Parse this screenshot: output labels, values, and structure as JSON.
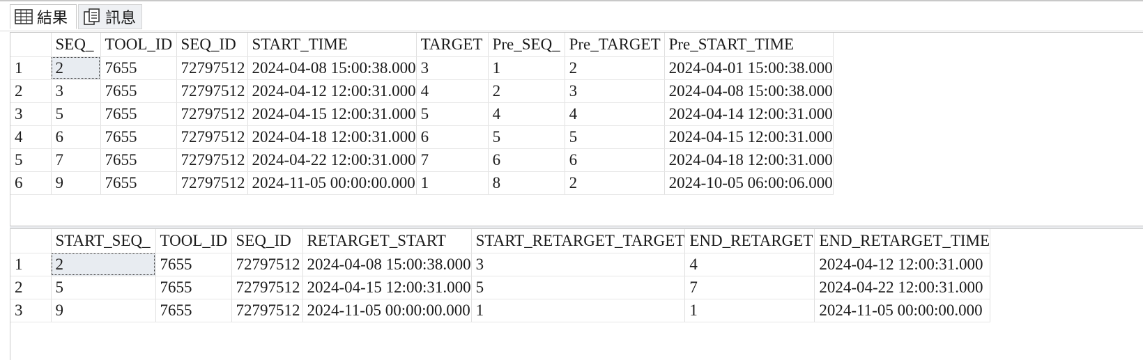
{
  "tabs": [
    {
      "label": "結果",
      "icon": "grid-icon",
      "active": true
    },
    {
      "label": "訊息",
      "icon": "message-icon",
      "active": false
    }
  ],
  "grid1": {
    "columns": [
      "",
      "SEQ_",
      "TOOL_ID",
      "SEQ_ID",
      "START_TIME",
      "TARGET",
      "Pre_SEQ_",
      "Pre_TARGET",
      "Pre_START_TIME"
    ],
    "rows": [
      [
        "1",
        "2",
        "7655",
        "72797512",
        "2024-04-08 15:00:38.000",
        "3",
        "1",
        "2",
        "2024-04-01 15:00:38.000"
      ],
      [
        "2",
        "3",
        "7655",
        "72797512",
        "2024-04-12 12:00:31.000",
        "4",
        "2",
        "3",
        "2024-04-08 15:00:38.000"
      ],
      [
        "3",
        "5",
        "7655",
        "72797512",
        "2024-04-15 12:00:31.000",
        "5",
        "4",
        "4",
        "2024-04-14 12:00:31.000"
      ],
      [
        "4",
        "6",
        "7655",
        "72797512",
        "2024-04-18 12:00:31.000",
        "6",
        "5",
        "5",
        "2024-04-15 12:00:31.000"
      ],
      [
        "5",
        "7",
        "7655",
        "72797512",
        "2024-04-22 12:00:31.000",
        "7",
        "6",
        "6",
        "2024-04-18 12:00:31.000"
      ],
      [
        "6",
        "9",
        "7655",
        "72797512",
        "2024-11-05 00:00:00.000",
        "1",
        "8",
        "2",
        "2024-10-05 06:00:06.000"
      ]
    ]
  },
  "grid2": {
    "columns": [
      "",
      "START_SEQ_",
      "TOOL_ID",
      "SEQ_ID",
      "RETARGET_START",
      "START_RETARGET_TARGET",
      "END_RETARGET",
      "END_RETARGET_TIME"
    ],
    "rows": [
      [
        "1",
        "2",
        "7655",
        "72797512",
        "2024-04-08 15:00:38.000",
        "3",
        "4",
        "2024-04-12 12:00:31.000"
      ],
      [
        "2",
        "5",
        "7655",
        "72797512",
        "2024-04-15 12:00:31.000",
        "5",
        "7",
        "2024-04-22 12:00:31.000"
      ],
      [
        "3",
        "9",
        "7655",
        "72797512",
        "2024-11-05 00:00:00.000",
        "1",
        "1",
        "2024-11-05 00:00:00.000"
      ]
    ]
  },
  "colors": {
    "selected_cell": "#e8ecf1",
    "grid_line": "#e0e0e0",
    "tab_inactive": "#eef0f3"
  }
}
